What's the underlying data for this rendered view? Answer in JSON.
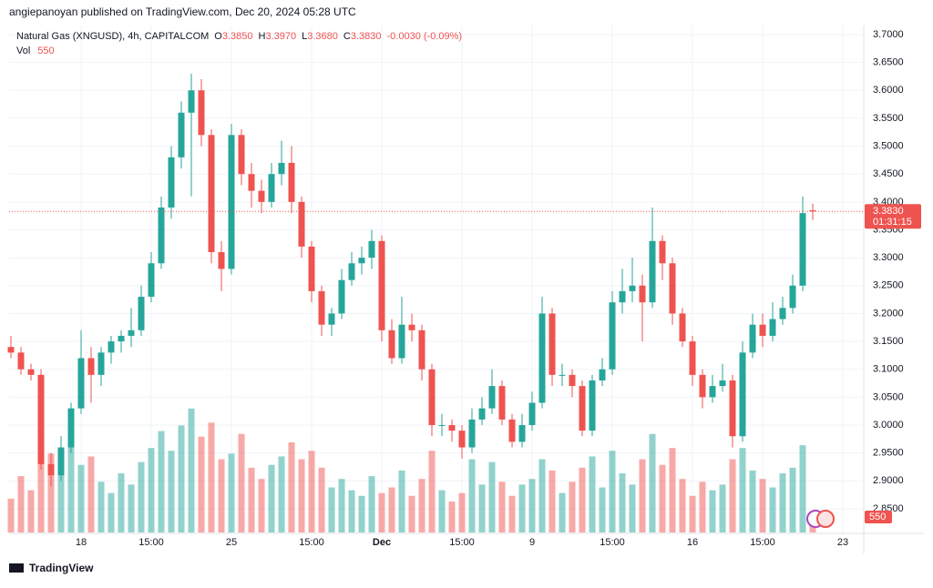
{
  "header": "angiepanoyan published on TradingView.com, Dec 20, 2024 05:28 UTC",
  "footer": "TradingView",
  "chart_data": {
    "type": "candlestick",
    "title": "Natural Gas (XNGUSD), 4h, CAPITALCOM",
    "legend": {
      "o_label": "O",
      "o": "3.3850",
      "h_label": "H",
      "h": "3.3970",
      "l_label": "L",
      "l": "3.3680",
      "c_label": "C",
      "c": "3.3830",
      "change": "-0.0030 (-0.09%)",
      "vol_label": "Vol"
    },
    "countdown": "01:31:15",
    "up_color": "#26a69a",
    "down_color": "#ef5350",
    "grid": true,
    "ylim": [
      2.8075,
      3.7163
    ],
    "vol_lim": [
      0,
      18000
    ],
    "yticks": [
      {
        "value": 2.85,
        "label": "2.8500"
      },
      {
        "value": 2.9,
        "label": "2.9000"
      },
      {
        "value": 2.95,
        "label": "2.9500"
      },
      {
        "value": 3.0,
        "label": "3.0000"
      },
      {
        "value": 3.05,
        "label": "3.0500"
      },
      {
        "value": 3.1,
        "label": "3.1000"
      },
      {
        "value": 3.15,
        "label": "3.1500"
      },
      {
        "value": 3.2,
        "label": "3.2000"
      },
      {
        "value": 3.25,
        "label": "3.2500"
      },
      {
        "value": 3.3,
        "label": "3.3000"
      },
      {
        "value": 3.35,
        "label": "3.3500"
      },
      {
        "value": 3.4,
        "label": "3.4000"
      },
      {
        "value": 3.45,
        "label": "3.4500"
      },
      {
        "value": 3.5,
        "label": "3.5000"
      },
      {
        "value": 3.55,
        "label": "3.5500"
      },
      {
        "value": 3.6,
        "label": "3.6000"
      },
      {
        "value": 3.65,
        "label": "3.6500"
      },
      {
        "value": 3.7,
        "label": "3.7000"
      }
    ],
    "categories": [
      null,
      null,
      null,
      null,
      null,
      null,
      null,
      "18",
      null,
      null,
      null,
      null,
      null,
      null,
      "15:00",
      null,
      null,
      null,
      null,
      null,
      null,
      null,
      "25",
      null,
      null,
      null,
      null,
      null,
      null,
      null,
      "15:00",
      null,
      null,
      null,
      null,
      null,
      null,
      "Dec",
      null,
      null,
      null,
      null,
      null,
      null,
      null,
      "15:00",
      null,
      null,
      null,
      null,
      null,
      null,
      "9",
      null,
      null,
      null,
      null,
      null,
      null,
      null,
      "15:00",
      null,
      null,
      null,
      null,
      null,
      null,
      null,
      "16",
      null,
      null,
      null,
      null,
      null,
      null,
      "15:00",
      null,
      null,
      null,
      null,
      null,
      null,
      null,
      "23"
    ],
    "candles": [
      [
        3.14,
        3.16,
        3.12,
        3.13,
        1200
      ],
      [
        3.13,
        3.14,
        3.09,
        3.1,
        2000
      ],
      [
        3.1,
        3.11,
        3.08,
        3.09,
        1500
      ],
      [
        3.09,
        3.1,
        2.92,
        2.93,
        3500
      ],
      [
        2.93,
        2.95,
        2.89,
        2.91,
        2800
      ],
      [
        2.91,
        2.98,
        2.9,
        2.96,
        2200
      ],
      [
        2.96,
        3.04,
        2.95,
        3.03,
        3300
      ],
      [
        3.03,
        3.17,
        3.02,
        3.12,
        2400
      ],
      [
        3.12,
        3.14,
        3.04,
        3.09,
        2700
      ],
      [
        3.09,
        3.14,
        3.07,
        3.13,
        1800
      ],
      [
        3.13,
        3.16,
        3.11,
        3.15,
        1400
      ],
      [
        3.15,
        3.17,
        3.13,
        3.16,
        2100
      ],
      [
        3.16,
        3.21,
        3.14,
        3.17,
        1700
      ],
      [
        3.17,
        3.25,
        3.16,
        3.23,
        2500
      ],
      [
        3.23,
        3.31,
        3.22,
        3.29,
        3000
      ],
      [
        3.29,
        3.41,
        3.28,
        3.39,
        3600
      ],
      [
        3.39,
        3.5,
        3.37,
        3.48,
        2900
      ],
      [
        3.48,
        3.58,
        3.46,
        3.56,
        3800
      ],
      [
        3.56,
        3.63,
        3.41,
        3.6,
        4400
      ],
      [
        3.6,
        3.62,
        3.5,
        3.52,
        3400
      ],
      [
        3.52,
        3.53,
        3.29,
        3.31,
        3900
      ],
      [
        3.31,
        3.33,
        3.24,
        3.28,
        2600
      ],
      [
        3.28,
        3.54,
        3.27,
        3.52,
        2800
      ],
      [
        3.52,
        3.53,
        3.43,
        3.45,
        3500
      ],
      [
        3.45,
        3.47,
        3.39,
        3.42,
        2300
      ],
      [
        3.42,
        3.44,
        3.38,
        3.4,
        1900
      ],
      [
        3.4,
        3.47,
        3.39,
        3.45,
        2400
      ],
      [
        3.45,
        3.51,
        3.43,
        3.47,
        2700
      ],
      [
        3.47,
        3.5,
        3.38,
        3.4,
        3200
      ],
      [
        3.4,
        3.41,
        3.3,
        3.32,
        2600
      ],
      [
        3.32,
        3.33,
        3.22,
        3.24,
        2900
      ],
      [
        3.24,
        3.25,
        3.16,
        3.18,
        2300
      ],
      [
        3.18,
        3.21,
        3.16,
        3.2,
        1600
      ],
      [
        3.2,
        3.28,
        3.19,
        3.26,
        1900
      ],
      [
        3.26,
        3.31,
        3.25,
        3.29,
        1500
      ],
      [
        3.29,
        3.32,
        3.27,
        3.3,
        1300
      ],
      [
        3.3,
        3.35,
        3.28,
        3.33,
        2000
      ],
      [
        3.33,
        3.34,
        3.15,
        3.17,
        1400
      ],
      [
        3.17,
        3.19,
        3.11,
        3.12,
        1600
      ],
      [
        3.12,
        3.23,
        3.11,
        3.18,
        2200
      ],
      [
        3.18,
        3.2,
        3.15,
        3.17,
        1300
      ],
      [
        3.17,
        3.18,
        3.08,
        3.1,
        1900
      ],
      [
        3.1,
        3.11,
        2.98,
        3.0,
        2900
      ],
      [
        3.0,
        3.02,
        2.98,
        3.0,
        1500
      ],
      [
        3.0,
        3.01,
        2.97,
        2.99,
        1100
      ],
      [
        2.99,
        3.0,
        2.94,
        2.96,
        1400
      ],
      [
        2.96,
        3.03,
        2.95,
        3.01,
        2600
      ],
      [
        3.01,
        3.05,
        3.0,
        3.03,
        1700
      ],
      [
        3.03,
        3.1,
        3.02,
        3.07,
        2500
      ],
      [
        3.07,
        3.08,
        3.0,
        3.01,
        1800
      ],
      [
        3.01,
        3.02,
        2.96,
        2.97,
        1300
      ],
      [
        2.97,
        3.02,
        2.96,
        3.0,
        1700
      ],
      [
        3.0,
        3.06,
        2.99,
        3.04,
        1900
      ],
      [
        3.04,
        3.23,
        3.03,
        3.2,
        2600
      ],
      [
        3.2,
        3.21,
        3.07,
        3.09,
        2200
      ],
      [
        3.09,
        3.11,
        3.07,
        3.09,
        1400
      ],
      [
        3.09,
        3.1,
        3.05,
        3.07,
        1800
      ],
      [
        3.07,
        3.08,
        2.98,
        2.99,
        2300
      ],
      [
        2.99,
        3.09,
        2.98,
        3.08,
        2700
      ],
      [
        3.08,
        3.12,
        3.07,
        3.1,
        1600
      ],
      [
        3.1,
        3.24,
        3.09,
        3.22,
        2900
      ],
      [
        3.22,
        3.28,
        3.2,
        3.24,
        2100
      ],
      [
        3.24,
        3.3,
        3.22,
        3.25,
        1700
      ],
      [
        3.25,
        3.27,
        3.15,
        3.22,
        2600
      ],
      [
        3.22,
        3.39,
        3.21,
        3.33,
        3500
      ],
      [
        3.33,
        3.34,
        3.26,
        3.29,
        2400
      ],
      [
        3.29,
        3.3,
        3.18,
        3.2,
        3000
      ],
      [
        3.2,
        3.21,
        3.14,
        3.15,
        1900
      ],
      [
        3.15,
        3.16,
        3.07,
        3.09,
        1300
      ],
      [
        3.09,
        3.1,
        3.03,
        3.05,
        1800
      ],
      [
        3.05,
        3.09,
        3.04,
        3.07,
        1500
      ],
      [
        3.07,
        3.11,
        3.06,
        3.08,
        1700
      ],
      [
        3.08,
        3.09,
        2.96,
        2.98,
        2600
      ],
      [
        2.98,
        3.15,
        2.97,
        3.13,
        3000
      ],
      [
        3.13,
        3.2,
        3.12,
        3.18,
        2200
      ],
      [
        3.18,
        3.2,
        3.14,
        3.16,
        1900
      ],
      [
        3.16,
        3.22,
        3.15,
        3.19,
        1600
      ],
      [
        3.19,
        3.23,
        3.18,
        3.21,
        2100
      ],
      [
        3.21,
        3.27,
        3.2,
        3.25,
        2300
      ],
      [
        3.25,
        3.41,
        3.24,
        3.38,
        3100
      ],
      [
        3.385,
        3.397,
        3.368,
        3.383,
        550
      ],
      null,
      null,
      null
    ]
  }
}
